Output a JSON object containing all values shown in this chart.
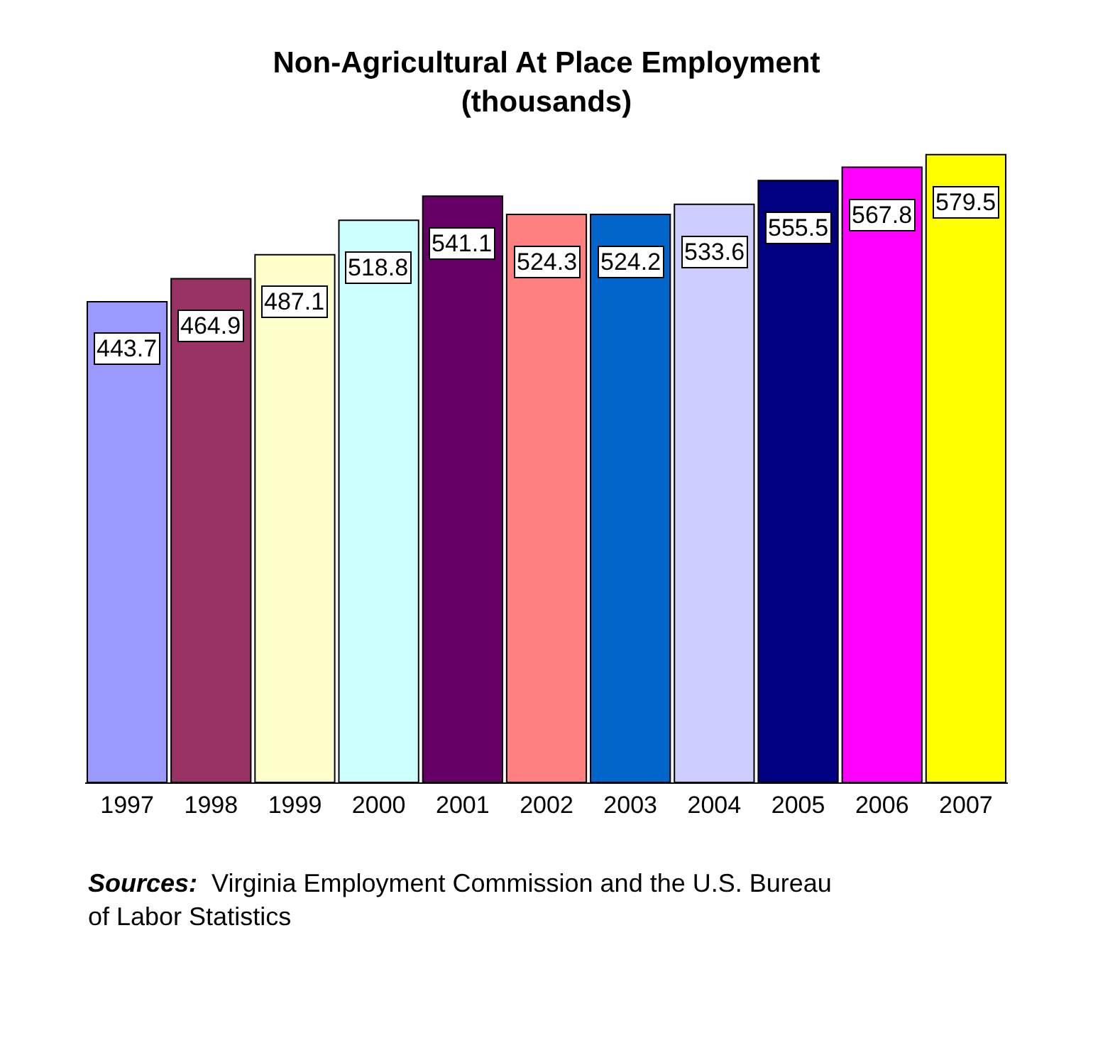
{
  "chart_data": {
    "type": "bar",
    "title": "Non-Agricultural At Place Employment\n(thousands)",
    "categories": [
      "1997",
      "1998",
      "1999",
      "2000",
      "2001",
      "2002",
      "2003",
      "2004",
      "2005",
      "2006",
      "2007"
    ],
    "values": [
      443.7,
      464.9,
      487.1,
      518.8,
      541.1,
      524.3,
      524.2,
      533.6,
      555.5,
      567.8,
      579.5
    ],
    "colors": [
      "#9999ff",
      "#993366",
      "#ffffcc",
      "#ccffff",
      "#660066",
      "#ff8080",
      "#0066cc",
      "#ccccff",
      "#000080",
      "#ff00ff",
      "#ffff00"
    ],
    "data_labels": true,
    "tick_labels": "x",
    "annotations": [
      "Sources:  Virginia Employment Commission and the U.S. Bureau\nof Labor Statistics"
    ]
  }
}
